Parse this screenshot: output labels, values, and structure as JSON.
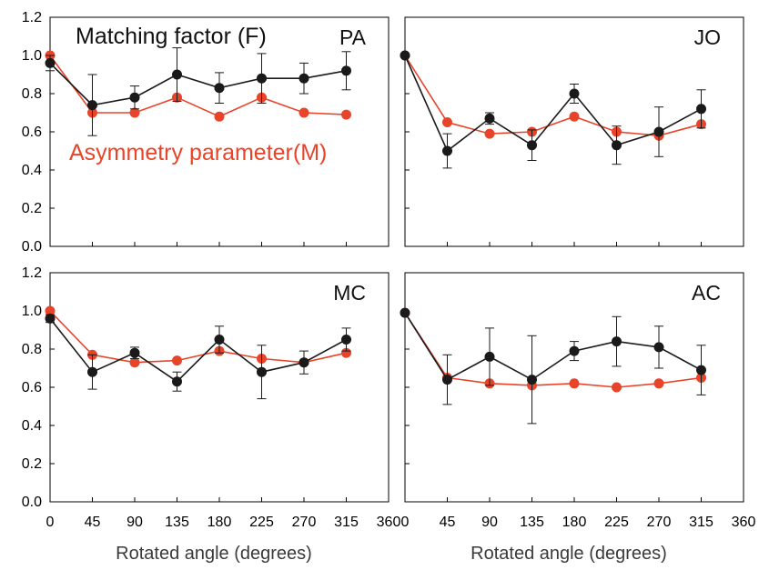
{
  "figure": {
    "legend": {
      "matching_label": "Matching factor (F)",
      "asymmetry_label": "Asymmetry parameter(M)"
    },
    "colors": {
      "matching": "#1a1a1a",
      "asymmetry": "#e8442a"
    }
  },
  "chart_data": [
    {
      "type": "line",
      "panel_label": "PA",
      "xlabel": "",
      "ylabel": "",
      "xlim": [
        0,
        360
      ],
      "ylim": [
        0,
        1.2
      ],
      "x_ticks": [
        0,
        45,
        90,
        135,
        180,
        225,
        270,
        315,
        360
      ],
      "y_ticks": [
        "0.0",
        "0.2",
        "0.4",
        "0.6",
        "0.8",
        "1.0",
        "1.2"
      ],
      "x": [
        0,
        45,
        90,
        135,
        180,
        225,
        270,
        315
      ],
      "series": [
        {
          "name": "Matching factor (F)",
          "values": [
            0.96,
            0.74,
            0.78,
            0.9,
            0.83,
            0.88,
            0.88,
            0.92
          ],
          "error": [
            0.04,
            0.16,
            0.06,
            0.14,
            0.08,
            0.13,
            0.08,
            0.1
          ]
        },
        {
          "name": "Asymmetry parameter(M)",
          "values": [
            1.0,
            0.7,
            0.7,
            0.78,
            0.68,
            0.78,
            0.7,
            0.69
          ]
        }
      ]
    },
    {
      "type": "line",
      "panel_label": "JO",
      "xlabel": "",
      "ylabel": "",
      "xlim": [
        0,
        360
      ],
      "ylim": [
        0,
        1.2
      ],
      "x_ticks": [
        0,
        45,
        90,
        135,
        180,
        225,
        270,
        315,
        360
      ],
      "y_ticks": [],
      "x": [
        0,
        45,
        90,
        135,
        180,
        225,
        270,
        315
      ],
      "series": [
        {
          "name": "Matching factor (F)",
          "values": [
            1.0,
            0.5,
            0.67,
            0.53,
            0.8,
            0.53,
            0.6,
            0.72
          ],
          "error": [
            0.0,
            0.09,
            0.03,
            0.08,
            0.05,
            0.1,
            0.13,
            0.1
          ]
        },
        {
          "name": "Asymmetry parameter(M)",
          "values": [
            1.0,
            0.65,
            0.59,
            0.6,
            0.68,
            0.6,
            0.58,
            0.64
          ]
        }
      ]
    },
    {
      "type": "line",
      "panel_label": "MC",
      "xlabel": "Rotated angle (degrees)",
      "ylabel": "",
      "xlim": [
        0,
        360
      ],
      "ylim": [
        0,
        1.2
      ],
      "x_ticks": [
        0,
        45,
        90,
        135,
        180,
        225,
        270,
        315,
        360
      ],
      "x_tick_labels": [
        "0",
        "45",
        "90",
        "135",
        "180",
        "225",
        "270",
        "315",
        "360"
      ],
      "y_ticks": [
        "0.0",
        "0.2",
        "0.4",
        "0.6",
        "0.8",
        "1.0",
        "1.2"
      ],
      "x": [
        0,
        45,
        90,
        135,
        180,
        225,
        270,
        315
      ],
      "series": [
        {
          "name": "Matching factor (F)",
          "values": [
            0.96,
            0.68,
            0.78,
            0.63,
            0.85,
            0.68,
            0.73,
            0.85
          ],
          "error": [
            0.02,
            0.09,
            0.03,
            0.05,
            0.07,
            0.14,
            0.06,
            0.06
          ]
        },
        {
          "name": "Asymmetry parameter(M)",
          "values": [
            1.0,
            0.77,
            0.73,
            0.74,
            0.79,
            0.75,
            0.73,
            0.78
          ]
        }
      ]
    },
    {
      "type": "line",
      "panel_label": "AC",
      "xlabel": "Rotated angle (degrees)",
      "ylabel": "",
      "xlim": [
        0,
        360
      ],
      "ylim": [
        0,
        1.2
      ],
      "x_ticks": [
        0,
        45,
        90,
        135,
        180,
        225,
        270,
        315,
        360
      ],
      "x_tick_labels": [
        "0",
        "45",
        "90",
        "135",
        "180",
        "225",
        "270",
        "315",
        "360"
      ],
      "y_ticks": [],
      "x": [
        0,
        45,
        90,
        135,
        180,
        225,
        270,
        315
      ],
      "series": [
        {
          "name": "Matching factor (F)",
          "values": [
            0.99,
            0.64,
            0.76,
            0.64,
            0.79,
            0.84,
            0.81,
            0.69
          ],
          "error": [
            0.0,
            0.13,
            0.15,
            0.23,
            0.05,
            0.13,
            0.11,
            0.13
          ]
        },
        {
          "name": "Asymmetry parameter(M)",
          "values": [
            0.99,
            0.65,
            0.62,
            0.61,
            0.62,
            0.6,
            0.62,
            0.65
          ]
        }
      ]
    }
  ]
}
